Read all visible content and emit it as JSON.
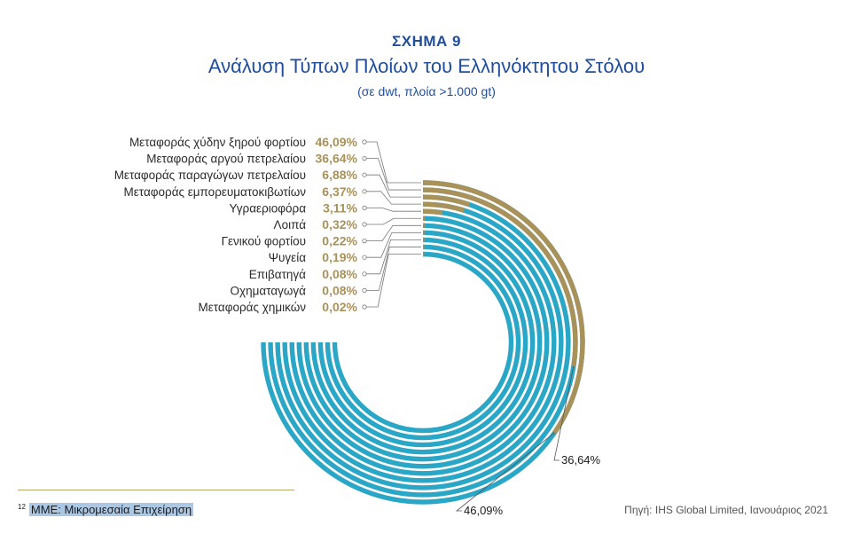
{
  "figure": {
    "label": "ΣΧΗΜΑ 9",
    "title": "Ανάλυση Τύπων Πλοίων του Ελληνόκτητου Στόλου",
    "subtitle": "(σε dwt, πλοία >1.000 gt)"
  },
  "colors": {
    "highlight": "#a8925a",
    "base": "#2aa6c6",
    "title": "#1f4e9c"
  },
  "chart_data": {
    "type": "radial-bar",
    "unit": "%",
    "categories": [
      "Μεταφοράς χύδην ξηρού φορτίου",
      "Μεταφοράς αργού πετρελαίου",
      "Μεταφοράς παραγώγων πετρελαίου",
      "Μεταφοράς εμπορευματοκιβωτίων",
      "Υγραεριοφόρα",
      "Λοιπά",
      "Γενικού φορτίου",
      "Ψυγεία",
      "Επιβατηγά",
      "Οχηματαγωγά",
      "Μεταφοράς χημικών"
    ],
    "values": [
      46.09,
      36.64,
      6.88,
      6.37,
      3.11,
      0.32,
      0.22,
      0.19,
      0.08,
      0.08,
      0.02
    ],
    "value_labels": [
      "46,09%",
      "36,64%",
      "6,88%",
      "6,37%",
      "3,11%",
      "0,32%",
      "0,22%",
      "0,19%",
      "0,08%",
      "0,08%",
      "0,02%"
    ],
    "callouts": [
      "36,64%",
      "46,09%"
    ]
  },
  "footnote": {
    "marker": "12",
    "text": "ΜΜΕ: Μικρομεσαία Επιχείρηση"
  },
  "source": "Πηγή: IHS Global Limited, Ιανουάριος 2021"
}
